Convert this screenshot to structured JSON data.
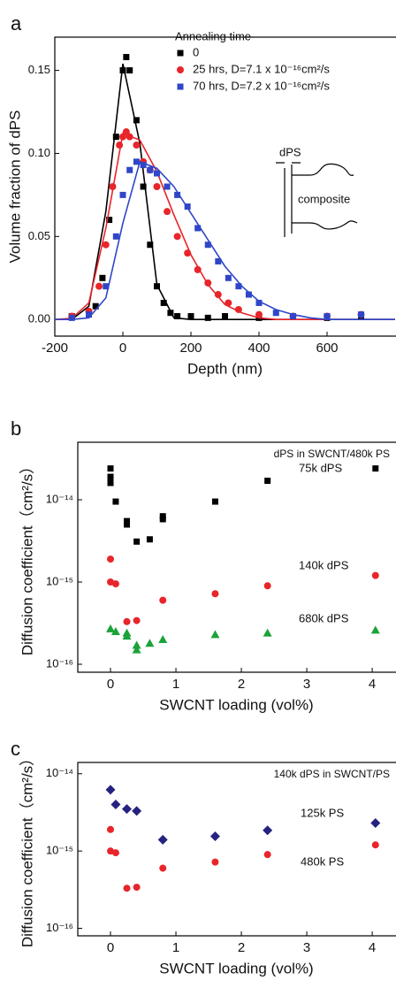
{
  "chart_data": [
    {
      "type": "scatter",
      "label": "a",
      "x_label": "Depth (nm)",
      "y_label": "Volume fraction of dPS",
      "legend_title": "Annealing time",
      "xlim": [
        -200,
        800
      ],
      "ylim": [
        -0.01,
        0.17
      ],
      "xticks": [
        -200,
        0,
        200,
        400,
        600
      ],
      "yticks": [
        {
          "value": 0,
          "label": "0.00"
        },
        0.05,
        {
          "value": 0.1,
          "label": "0.10"
        },
        0.15
      ],
      "annotations": [
        "dPS",
        "composite"
      ],
      "fit_x": [
        -200,
        -150,
        -100,
        -50,
        0,
        50,
        100,
        150,
        200,
        250,
        300,
        350,
        400,
        450,
        500,
        550,
        600,
        650,
        700,
        750,
        800
      ],
      "series": [
        {
          "name": "0",
          "color": "#000000",
          "marker": "square",
          "x": [
            -150,
            -100,
            -80,
            -60,
            -40,
            -20,
            0,
            10,
            20,
            40,
            60,
            80,
            100,
            120,
            140,
            160,
            200,
            250,
            300,
            400,
            500,
            600,
            700
          ],
          "values": [
            0.002,
            0.003,
            0.008,
            0.025,
            0.06,
            0.11,
            0.15,
            0.158,
            0.15,
            0.12,
            0.08,
            0.045,
            0.02,
            0.01,
            0.004,
            0.002,
            0.002,
            0.001,
            0.002,
            0.001,
            0.002,
            0.001,
            0.002
          ],
          "fit": [
            0,
            0,
            0.008,
            0.065,
            0.154,
            0.106,
            0.021,
            0.001,
            0,
            0,
            0,
            0,
            0,
            0,
            0,
            0,
            0,
            0,
            0,
            0,
            0
          ]
        },
        {
          "name": "25 hrs, D=7.1 x 10⁻¹⁶cm²/s",
          "color": "#e8252a",
          "marker": "circle",
          "x": [
            -150,
            -100,
            -70,
            -50,
            -30,
            -10,
            0,
            10,
            20,
            40,
            60,
            80,
            100,
            130,
            160,
            190,
            220,
            250,
            280,
            310,
            340,
            400,
            500,
            600,
            700
          ],
          "values": [
            0.002,
            0.005,
            0.02,
            0.045,
            0.08,
            0.105,
            0.11,
            0.113,
            0.11,
            0.105,
            0.095,
            0.09,
            0.08,
            0.065,
            0.05,
            0.04,
            0.03,
            0.022,
            0.015,
            0.01,
            0.006,
            0.003,
            0.002,
            0.002,
            0.003
          ],
          "fit": [
            0,
            0.0007,
            0.01,
            0.055,
            0.112,
            0.108,
            0.089,
            0.063,
            0.039,
            0.021,
            0.009,
            0.004,
            0.001,
            0,
            0,
            0,
            0,
            0,
            0,
            0,
            0
          ]
        },
        {
          "name": "70 hrs, D=7.2 x 10⁻¹⁶cm²/s",
          "color": "#2f46c8",
          "marker": "square",
          "x": [
            -150,
            -100,
            -50,
            -20,
            0,
            20,
            40,
            60,
            80,
            100,
            130,
            160,
            190,
            220,
            250,
            280,
            310,
            340,
            370,
            400,
            450,
            500,
            600,
            700
          ],
          "values": [
            0.001,
            0.003,
            0.02,
            0.05,
            0.075,
            0.09,
            0.095,
            0.093,
            0.09,
            0.088,
            0.08,
            0.075,
            0.068,
            0.055,
            0.045,
            0.035,
            0.025,
            0.02,
            0.015,
            0.01,
            0.004,
            0.002,
            0.002,
            0.003
          ],
          "fit": [
            0,
            0,
            0.001,
            0.013,
            0.058,
            0.095,
            0.091,
            0.08,
            0.064,
            0.048,
            0.032,
            0.02,
            0.011,
            0.006,
            0.003,
            0.001,
            0,
            0,
            0,
            0,
            0
          ]
        }
      ]
    },
    {
      "type": "scatter",
      "label": "b",
      "x_label": "SWCNT loading (vol%)",
      "y_label": "Diffusion coefficient（cm²/s）",
      "title": "dPS in SWCNT/480k PS",
      "log_y": true,
      "xlim": [
        -0.5,
        4.35
      ],
      "ylim": [
        8e-17,
        5e-14
      ],
      "xticks": [
        0,
        1,
        2,
        3,
        4
      ],
      "yticks": [
        {
          "value": 1e-16,
          "label": "10⁻¹⁶"
        },
        {
          "value": 1e-15,
          "label": "10⁻¹⁵"
        },
        {
          "value": 1e-14,
          "label": "10⁻¹⁴"
        }
      ],
      "series": [
        {
          "name": "75k dPS",
          "color": "#000000",
          "marker": "square",
          "x": [
            0,
            0,
            0,
            0.08,
            0.25,
            0.25,
            0.4,
            0.6,
            0.8,
            0.8,
            1.6,
            2.4,
            4.05
          ],
          "values": [
            2.4e-14,
            1.9e-14,
            1.6e-14,
            9.5e-15,
            5.5e-15,
            5e-15,
            3.1e-15,
            3.3e-15,
            5.8e-15,
            6.3e-15,
            9.5e-15,
            1.7e-14,
            2.4e-14
          ]
        },
        {
          "name": "140k dPS",
          "color": "#e8252a",
          "marker": "circle",
          "x": [
            0,
            0,
            0.08,
            0.25,
            0.4,
            0.8,
            1.6,
            2.4,
            4.05
          ],
          "values": [
            1.9e-15,
            1e-15,
            9.5e-16,
            3.3e-16,
            3.4e-16,
            6e-16,
            7.2e-16,
            9e-16,
            1.2e-15
          ]
        },
        {
          "name": "680k dPS",
          "color": "#1aa33a",
          "marker": "triangle",
          "x": [
            0,
            0.08,
            0.25,
            0.25,
            0.4,
            0.4,
            0.6,
            0.8,
            1.6,
            2.4,
            4.05
          ],
          "values": [
            2.7e-16,
            2.5e-16,
            2.2e-16,
            2.4e-16,
            1.5e-16,
            1.7e-16,
            1.8e-16,
            2e-16,
            2.3e-16,
            2.4e-16,
            2.6e-16
          ]
        }
      ]
    },
    {
      "type": "scatter",
      "label": "c",
      "x_label": "SWCNT loading (vol%)",
      "y_label": "Diffusion coefficient（cm²/s）",
      "title": "140k dPS in SWCNT/PS",
      "log_y": true,
      "xlim": [
        -0.5,
        4.35
      ],
      "ylim": [
        8e-17,
        1.4e-14
      ],
      "xticks": [
        0,
        1,
        2,
        3,
        4
      ],
      "yticks": [
        {
          "value": 1e-16,
          "label": "10⁻¹⁶"
        },
        {
          "value": 1e-15,
          "label": "10⁻¹⁵"
        },
        {
          "value": 1e-14,
          "label": "10⁻¹⁴"
        }
      ],
      "series": [
        {
          "name": "125k PS",
          "color": "#25237f",
          "marker": "diamond",
          "x": [
            0,
            0.08,
            0.25,
            0.4,
            0.8,
            1.6,
            2.4,
            4.05
          ],
          "values": [
            6.2e-15,
            4e-15,
            3.5e-15,
            3.3e-15,
            1.4e-15,
            1.55e-15,
            1.85e-15,
            2.3e-15
          ]
        },
        {
          "name": "480k PS",
          "color": "#e8252a",
          "marker": "circle",
          "x": [
            0,
            0,
            0.08,
            0.25,
            0.4,
            0.8,
            1.6,
            2.4,
            4.05
          ],
          "values": [
            1.9e-15,
            1e-15,
            9.5e-16,
            3.3e-16,
            3.4e-16,
            6e-16,
            7.2e-16,
            9e-16,
            1.2e-15
          ]
        }
      ]
    }
  ]
}
